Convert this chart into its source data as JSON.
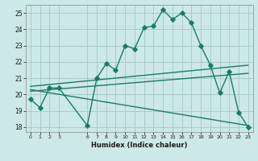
{
  "xlabel": "Humidex (Indice chaleur)",
  "ylabel": "",
  "background_color": "#cce8e8",
  "grid_color": "#aacccc",
  "line_color": "#1a7a6a",
  "xlim": [
    -0.5,
    23.5
  ],
  "ylim": [
    17.7,
    25.5
  ],
  "yticks": [
    18,
    19,
    20,
    21,
    22,
    23,
    24,
    25
  ],
  "xtick_positions": [
    0,
    1,
    2,
    3,
    6,
    7,
    8,
    9,
    10,
    11,
    12,
    13,
    14,
    15,
    16,
    17,
    18,
    19,
    20,
    21,
    22,
    23
  ],
  "xtick_labels": [
    "0",
    "1",
    "2",
    "3",
    "6",
    "7",
    "8",
    "9",
    "10",
    "11",
    "12",
    "13",
    "14",
    "15",
    "16",
    "17",
    "18",
    "19",
    "20",
    "21",
    "22",
    "23"
  ],
  "series1_x": [
    0,
    1,
    2,
    3,
    6,
    7,
    8,
    9,
    10,
    11,
    12,
    13,
    14,
    15,
    16,
    17,
    18,
    19,
    20,
    21,
    22,
    23
  ],
  "series1_y": [
    19.7,
    19.2,
    20.4,
    20.4,
    18.1,
    21.0,
    21.9,
    21.5,
    23.0,
    22.8,
    24.1,
    24.2,
    25.2,
    24.6,
    25.0,
    24.4,
    23.0,
    21.8,
    20.1,
    21.4,
    18.9,
    18.0
  ],
  "series2_x": [
    0,
    23
  ],
  "series2_y": [
    20.5,
    21.8
  ],
  "series3_x": [
    0,
    23
  ],
  "series3_y": [
    20.2,
    21.3
  ],
  "series4_x": [
    0,
    23
  ],
  "series4_y": [
    20.3,
    18.1
  ],
  "markersize": 2.8,
  "linewidth": 1.0
}
